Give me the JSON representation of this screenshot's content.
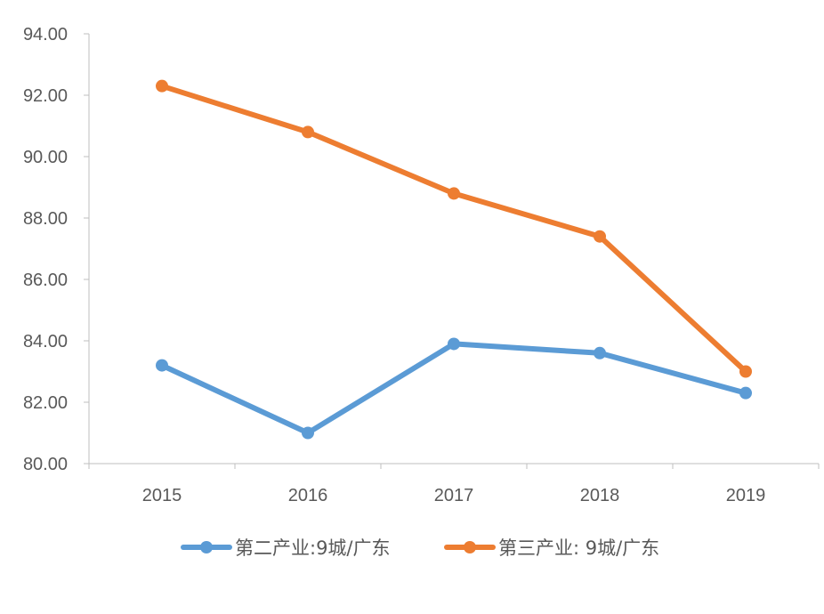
{
  "chart_data": {
    "type": "line",
    "title": "",
    "xlabel": "",
    "ylabel": "",
    "categories": [
      "2015",
      "2016",
      "2017",
      "2018",
      "2019"
    ],
    "ylim": [
      80,
      94
    ],
    "yticks": [
      "80.00",
      "82.00",
      "84.00",
      "86.00",
      "88.00",
      "90.00",
      "92.00",
      "94.00"
    ],
    "grid": false,
    "legend_position": "bottom",
    "series": [
      {
        "name": "第二产业:9城/广东",
        "color": "#5B9BD5",
        "values": [
          83.2,
          81.0,
          83.9,
          83.6,
          82.3
        ]
      },
      {
        "name": "第三产业: 9城/广东",
        "color": "#ED7D31",
        "values": [
          92.3,
          90.8,
          88.8,
          87.4,
          83.0
        ]
      }
    ]
  }
}
